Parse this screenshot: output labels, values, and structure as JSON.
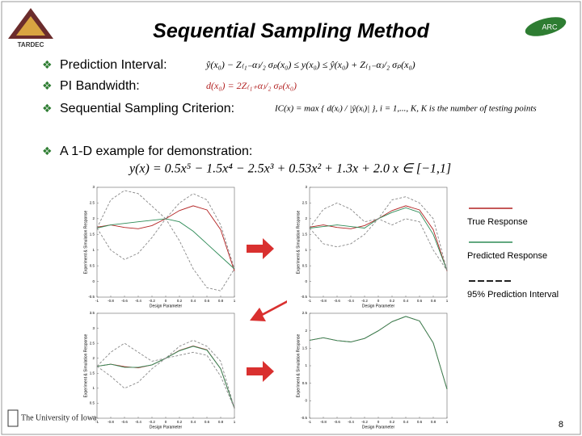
{
  "header": {
    "title": "Sequential Sampling Method",
    "logo_left": "TARDEC",
    "logo_right": "ARC"
  },
  "bullets": [
    {
      "label": "Prediction Interval:",
      "equation": "ŷ(x₀) − Z₍₁₋α₎/₂ σₚ(x₀) ≤ y(x₀) ≤ ŷ(x₀) + Z₍₁₋α₎/₂ σₚ(x₀)"
    },
    {
      "label": "PI Bandwidth:",
      "equation": "d(x₀) = 2Z₍₁₊α₎/₂ σₚ(x₀)"
    },
    {
      "label": "Sequential Sampling Criterion:",
      "equation": "IC(x) = max { d(xᵢ) / |ŷ(xᵢ)| },  i = 1,..., K,  K is the number of testing points"
    }
  ],
  "example": {
    "label": "A 1-D example for demonstration:",
    "equation": "y(x) = 0.5x⁵ − 1.5x⁴ − 2.5x³ + 0.53x² + 1.3x + 2.0     x ∈ [−1,1]"
  },
  "legend": [
    {
      "label": "True Response",
      "color": "#b22222",
      "style": "solid"
    },
    {
      "label": "Predicted Response",
      "color": "#2e8b57",
      "style": "solid"
    },
    {
      "label": "95% Prediction Interval",
      "color": "#222222",
      "style": "dashed"
    }
  ],
  "chart_data": [
    {
      "type": "line",
      "xlabel": "Design Parameter",
      "ylabel": "Experiment & Simulation Response",
      "x": [
        -1,
        -0.8,
        -0.6,
        -0.4,
        -0.2,
        0,
        0.2,
        0.4,
        0.6,
        0.8,
        1
      ],
      "xlim": [
        -1,
        1
      ],
      "xticks": [
        -1,
        -0.8,
        -0.6,
        -0.4,
        -0.2,
        0,
        0.2,
        0.4,
        0.6,
        0.8,
        1
      ],
      "ylim": [
        -0.5,
        3
      ],
      "yticks": [
        -0.5,
        0,
        0.5,
        1,
        1.5,
        2,
        2.5,
        3
      ],
      "series": [
        {
          "values": [
            1.73,
            1.8,
            1.72,
            1.68,
            1.78,
            2,
            2.26,
            2.41,
            2.28,
            1.65,
            0.33
          ],
          "color": "#b22222",
          "style": "solid"
        },
        {
          "values": [
            1.7,
            1.8,
            1.85,
            1.9,
            1.95,
            2,
            1.9,
            1.6,
            1.2,
            0.8,
            0.4
          ],
          "color": "#2e8b57",
          "style": "solid"
        },
        {
          "values": [
            1.7,
            2.6,
            2.9,
            2.8,
            2.4,
            2,
            2.5,
            2.8,
            2.6,
            1.8,
            0.4
          ],
          "color": "#888888",
          "style": "dashed"
        },
        {
          "values": [
            1.7,
            1,
            0.7,
            0.9,
            1.4,
            2,
            1.3,
            0.4,
            -0.2,
            -0.3,
            0.4
          ],
          "color": "#888888",
          "style": "dashed"
        }
      ]
    },
    {
      "type": "line",
      "xlabel": "Design Parameter",
      "ylabel": "Experiment & Simulation Response",
      "x": [
        -1,
        -0.8,
        -0.6,
        -0.4,
        -0.2,
        0,
        0.2,
        0.4,
        0.6,
        0.8,
        1
      ],
      "xlim": [
        -1,
        1
      ],
      "xticks": [
        -1,
        -0.8,
        -0.6,
        -0.4,
        -0.2,
        0,
        0.2,
        0.4,
        0.6,
        0.8,
        1
      ],
      "ylim": [
        -0.5,
        3
      ],
      "yticks": [
        -0.5,
        0,
        0.5,
        1,
        1.5,
        2,
        2.5,
        3
      ],
      "series": [
        {
          "values": [
            1.73,
            1.8,
            1.72,
            1.68,
            1.78,
            2,
            2.26,
            2.41,
            2.28,
            1.65,
            0.33
          ],
          "color": "#b22222",
          "style": "solid"
        },
        {
          "values": [
            1.7,
            1.75,
            1.8,
            1.75,
            1.7,
            2,
            2.2,
            2.35,
            2.2,
            1.5,
            0.35
          ],
          "color": "#2e8b57",
          "style": "solid"
        },
        {
          "values": [
            1.7,
            2.3,
            2.5,
            2.3,
            1.9,
            2,
            2.6,
            2.7,
            2.5,
            2,
            0.35
          ],
          "color": "#888888",
          "style": "dashed"
        },
        {
          "values": [
            1.7,
            1.2,
            1.1,
            1.2,
            1.5,
            2,
            1.8,
            2,
            1.9,
            1,
            0.35
          ],
          "color": "#888888",
          "style": "dashed"
        }
      ]
    },
    {
      "type": "line",
      "xlabel": "Design Parameter",
      "ylabel": "Experiment & Simulation Response",
      "x": [
        -1,
        -0.8,
        -0.6,
        -0.4,
        -0.2,
        0,
        0.2,
        0.4,
        0.6,
        0.8,
        1
      ],
      "xlim": [
        -1,
        1
      ],
      "xticks": [
        -1,
        -0.8,
        -0.6,
        -0.4,
        -0.2,
        0,
        0.2,
        0.4,
        0.6,
        0.8,
        1
      ],
      "ylim": [
        0,
        3.5
      ],
      "yticks": [
        0,
        0.5,
        1,
        1.5,
        2,
        2.5,
        3,
        3.5
      ],
      "series": [
        {
          "values": [
            1.73,
            1.8,
            1.72,
            1.68,
            1.78,
            2,
            2.26,
            2.41,
            2.28,
            1.65,
            0.33
          ],
          "color": "#b22222",
          "style": "solid"
        },
        {
          "values": [
            1.73,
            1.8,
            1.7,
            1.7,
            1.78,
            2,
            2.25,
            2.4,
            2.27,
            1.65,
            0.33
          ],
          "color": "#2e8b57",
          "style": "solid"
        },
        {
          "values": [
            1.73,
            2.2,
            2.5,
            2.2,
            1.9,
            2,
            2.4,
            2.6,
            2.4,
            1.9,
            0.33
          ],
          "color": "#888888",
          "style": "dashed"
        },
        {
          "values": [
            1.73,
            1.4,
            1,
            1.2,
            1.65,
            2,
            2.1,
            2.2,
            2.1,
            1.4,
            0.33
          ],
          "color": "#888888",
          "style": "dashed"
        }
      ]
    },
    {
      "type": "line",
      "xlabel": "Design Parameter",
      "ylabel": "Experiment & Simulation Response",
      "x": [
        -1,
        -0.8,
        -0.6,
        -0.4,
        -0.2,
        0,
        0.2,
        0.4,
        0.6,
        0.8,
        1
      ],
      "xlim": [
        -1,
        1
      ],
      "xticks": [
        -1,
        -0.8,
        -0.6,
        -0.4,
        -0.2,
        0,
        0.2,
        0.4,
        0.6,
        0.8,
        1
      ],
      "ylim": [
        -0.5,
        2.5
      ],
      "yticks": [
        -0.5,
        0,
        0.5,
        1,
        1.5,
        2,
        2.5
      ],
      "series": [
        {
          "values": [
            1.73,
            1.8,
            1.72,
            1.68,
            1.78,
            2,
            2.26,
            2.41,
            2.28,
            1.65,
            0.33
          ],
          "color": "#b22222",
          "style": "solid"
        },
        {
          "values": [
            1.73,
            1.8,
            1.72,
            1.68,
            1.78,
            2,
            2.26,
            2.41,
            2.28,
            1.65,
            0.33
          ],
          "color": "#2e8b57",
          "style": "solid"
        }
      ]
    }
  ],
  "footer": {
    "university": "The University of Iowa",
    "page": "8"
  }
}
